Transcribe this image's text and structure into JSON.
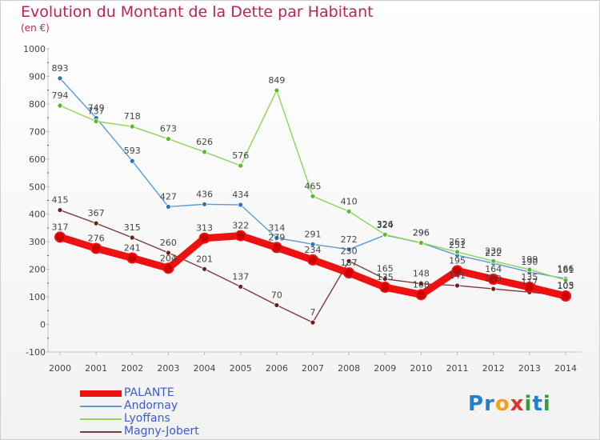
{
  "title": "Evolution du Montant de la Dette par Habitant",
  "unit_label": "(en €)",
  "logo": {
    "text": "Proxiti",
    "letters": [
      {
        "ch": "P",
        "color": "#1f7fd0"
      },
      {
        "ch": "r",
        "color": "#1f7fd0"
      },
      {
        "ch": "o",
        "color": "#f2a21a"
      },
      {
        "ch": "x",
        "color": "#e0322a"
      },
      {
        "ch": "i",
        "color": "#2aa23a"
      },
      {
        "ch": "t",
        "color": "#1f7fd0"
      },
      {
        "ch": "i",
        "color": "#2aa23a"
      }
    ]
  },
  "chart_data": {
    "type": "line",
    "x": [
      "2000",
      "2001",
      "2002",
      "2003",
      "2004",
      "2005",
      "2006",
      "2007",
      "2008",
      "2009",
      "2010",
      "2011",
      "2012",
      "2013",
      "2014"
    ],
    "ylim": [
      -100,
      1000
    ],
    "yticks": [
      "-100",
      "0",
      "100",
      "200",
      "300",
      "400",
      "500",
      "600",
      "700",
      "800",
      "900",
      "1000"
    ],
    "grid": false,
    "legend_position": "bottom-left",
    "series": [
      {
        "name": "PALANTE",
        "color": "#ee1111",
        "marker": "#cc0000",
        "bold": true,
        "values": [
          317,
          276,
          241,
          204,
          313,
          322,
          279,
          234,
          187,
          135,
          108,
          195,
          164,
          135,
          103
        ],
        "labels": [
          "317",
          "276",
          "241",
          "204",
          "313",
          "322",
          "279",
          "234",
          "187",
          "135",
          "108",
          "195",
          "164",
          "135",
          "103"
        ]
      },
      {
        "name": "Andornay",
        "color": "#5b9bd5",
        "marker": "#2e75b6",
        "bold": false,
        "values": [
          893,
          749,
          593,
          427,
          436,
          434,
          314,
          291,
          272,
          324,
          296,
          251,
          222,
          190,
          166
        ],
        "labels": [
          "893",
          "749",
          "593",
          "427",
          "436",
          "434",
          "314",
          "291",
          "272",
          "324",
          "296",
          "251",
          "222",
          "190",
          "166"
        ]
      },
      {
        "name": "Lyoffans",
        "color": "#8fd45a",
        "marker": "#5cb82e",
        "bold": false,
        "values": [
          794,
          737,
          718,
          673,
          626,
          576,
          849,
          465,
          410,
          326,
          296,
          263,
          230,
          199,
          161
        ],
        "labels": [
          "794",
          "737",
          "718",
          "673",
          "626",
          "576",
          "849",
          "465",
          "410",
          "326",
          "296",
          "263",
          "230",
          "199",
          "161"
        ]
      },
      {
        "name": "Magny-Jobert",
        "color": "#7a3b3b",
        "marker": "#6b1f1f",
        "bold": false,
        "values": [
          415,
          367,
          315,
          260,
          201,
          137,
          70,
          7,
          230,
          165,
          148,
          141,
          129,
          117,
          105
        ],
        "labels": [
          "415",
          "367",
          "315",
          "260",
          "201",
          "137",
          "70",
          "7",
          "230",
          "165",
          "148",
          "141",
          "129",
          "117",
          "105"
        ]
      }
    ]
  }
}
